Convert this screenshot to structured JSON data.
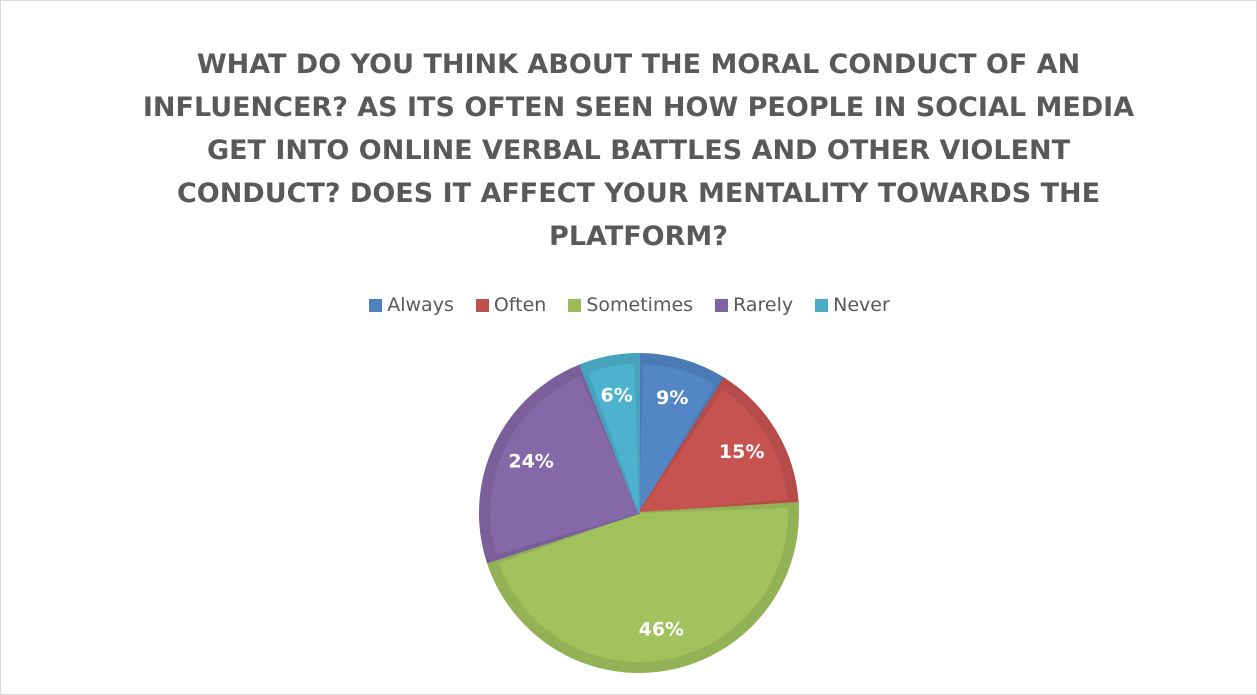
{
  "chart_data": {
    "type": "pie",
    "title": "WHAT DO YOU THINK ABOUT THE MORAL CONDUCT OF AN INFLUENCER? AS ITS OFTEN SEEN HOW PEOPLE IN SOCIAL MEDIA GET INTO ONLINE VERBAL BATTLES AND OTHER VIOLENT CONDUCT? DOES IT AFFECT YOUR MENTALITY TOWARDS THE PLATFORM?",
    "categories": [
      "Always",
      "Often",
      "Sometimes",
      "Rarely",
      "Never"
    ],
    "values": [
      9,
      15,
      46,
      24,
      6
    ],
    "value_labels": [
      "9%",
      "15%",
      "46%",
      "24%",
      "6%"
    ],
    "colors": [
      "#4f81bd",
      "#c0504d",
      "#9bbb59",
      "#8064a2",
      "#4bacc6"
    ],
    "legend": "top"
  }
}
